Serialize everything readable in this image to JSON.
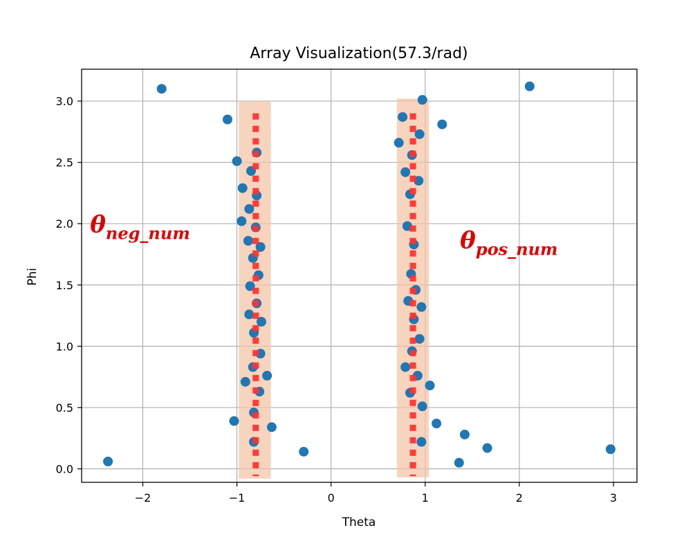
{
  "chart_data": {
    "type": "scatter",
    "title": "Array Visualization(57.3/rad)",
    "xlabel": "Theta",
    "ylabel": "Phi",
    "xlim": [
      -2.65,
      3.25
    ],
    "ylim": [
      -0.11,
      3.26
    ],
    "xticks": [
      -2,
      -1,
      0,
      1,
      2,
      3
    ],
    "xtick_labels": [
      "−2",
      "−1",
      "0",
      "1",
      "2",
      "3"
    ],
    "yticks": [
      0.0,
      0.5,
      1.0,
      1.5,
      2.0,
      2.5,
      3.0
    ],
    "ytick_labels": [
      "0.0",
      "0.5",
      "1.0",
      "1.5",
      "2.0",
      "2.5",
      "3.0"
    ],
    "grid": true,
    "marker_color": "#1f77b4",
    "band_color": "#f4c3a3",
    "dash_color": "#ff3333",
    "label_color": "#e00000",
    "points": [
      {
        "x": -2.37,
        "y": 0.06
      },
      {
        "x": -1.8,
        "y": 3.1
      },
      {
        "x": -1.1,
        "y": 2.85
      },
      {
        "x": -1.0,
        "y": 2.51
      },
      {
        "x": -0.79,
        "y": 2.58
      },
      {
        "x": -0.85,
        "y": 2.43
      },
      {
        "x": -0.94,
        "y": 2.29
      },
      {
        "x": -0.79,
        "y": 2.23
      },
      {
        "x": -0.87,
        "y": 2.12
      },
      {
        "x": -0.95,
        "y": 2.02
      },
      {
        "x": -0.8,
        "y": 1.97
      },
      {
        "x": -0.88,
        "y": 1.86
      },
      {
        "x": -0.75,
        "y": 1.81
      },
      {
        "x": -0.83,
        "y": 1.72
      },
      {
        "x": -0.77,
        "y": 1.58
      },
      {
        "x": -0.86,
        "y": 1.49
      },
      {
        "x": -0.79,
        "y": 1.35
      },
      {
        "x": -0.87,
        "y": 1.26
      },
      {
        "x": -0.74,
        "y": 1.2
      },
      {
        "x": -0.82,
        "y": 1.11
      },
      {
        "x": -0.75,
        "y": 0.94
      },
      {
        "x": -0.83,
        "y": 0.83
      },
      {
        "x": -0.68,
        "y": 0.76
      },
      {
        "x": -0.91,
        "y": 0.71
      },
      {
        "x": -0.76,
        "y": 0.63
      },
      {
        "x": -0.82,
        "y": 0.46
      },
      {
        "x": -1.03,
        "y": 0.39
      },
      {
        "x": -0.63,
        "y": 0.34
      },
      {
        "x": -0.82,
        "y": 0.22
      },
      {
        "x": -0.29,
        "y": 0.14
      },
      {
        "x": 0.97,
        "y": 3.01
      },
      {
        "x": 0.76,
        "y": 2.87
      },
      {
        "x": 1.18,
        "y": 2.81
      },
      {
        "x": 0.94,
        "y": 2.73
      },
      {
        "x": 0.72,
        "y": 2.66
      },
      {
        "x": 0.86,
        "y": 2.56
      },
      {
        "x": 0.79,
        "y": 2.42
      },
      {
        "x": 0.93,
        "y": 2.35
      },
      {
        "x": 0.84,
        "y": 2.24
      },
      {
        "x": 0.81,
        "y": 1.98
      },
      {
        "x": 0.88,
        "y": 1.83
      },
      {
        "x": 0.85,
        "y": 1.59
      },
      {
        "x": 0.9,
        "y": 1.46
      },
      {
        "x": 0.82,
        "y": 1.37
      },
      {
        "x": 0.96,
        "y": 1.32
      },
      {
        "x": 0.88,
        "y": 1.22
      },
      {
        "x": 0.94,
        "y": 1.06
      },
      {
        "x": 0.86,
        "y": 0.96
      },
      {
        "x": 0.79,
        "y": 0.83
      },
      {
        "x": 0.92,
        "y": 0.76
      },
      {
        "x": 1.05,
        "y": 0.68
      },
      {
        "x": 0.84,
        "y": 0.62
      },
      {
        "x": 0.97,
        "y": 0.51
      },
      {
        "x": 1.12,
        "y": 0.37
      },
      {
        "x": 1.42,
        "y": 0.28
      },
      {
        "x": 0.96,
        "y": 0.22
      },
      {
        "x": 1.66,
        "y": 0.17
      },
      {
        "x": 1.36,
        "y": 0.05
      },
      {
        "x": 2.11,
        "y": 3.12
      },
      {
        "x": 2.97,
        "y": 0.16
      }
    ],
    "bands": [
      {
        "name": "neg",
        "x_range": [
          -0.98,
          -0.64
        ],
        "y_range": [
          -0.08,
          3.0
        ]
      },
      {
        "name": "pos",
        "x_range": [
          0.7,
          1.04
        ],
        "y_range": [
          -0.07,
          3.02
        ]
      }
    ],
    "dashed_lines": [
      {
        "name": "neg",
        "x": -0.8,
        "y_range": [
          -0.06,
          2.9
        ]
      },
      {
        "name": "pos",
        "x": 0.87,
        "y_range": [
          -0.06,
          2.9
        ]
      }
    ],
    "annotations": [
      {
        "id": "neg",
        "main": "θ",
        "sub": "neg_num",
        "x": -2.56,
        "y": 1.93
      },
      {
        "id": "pos",
        "main": "θ",
        "sub": "pos_num",
        "x": 1.37,
        "y": 1.8
      }
    ]
  }
}
